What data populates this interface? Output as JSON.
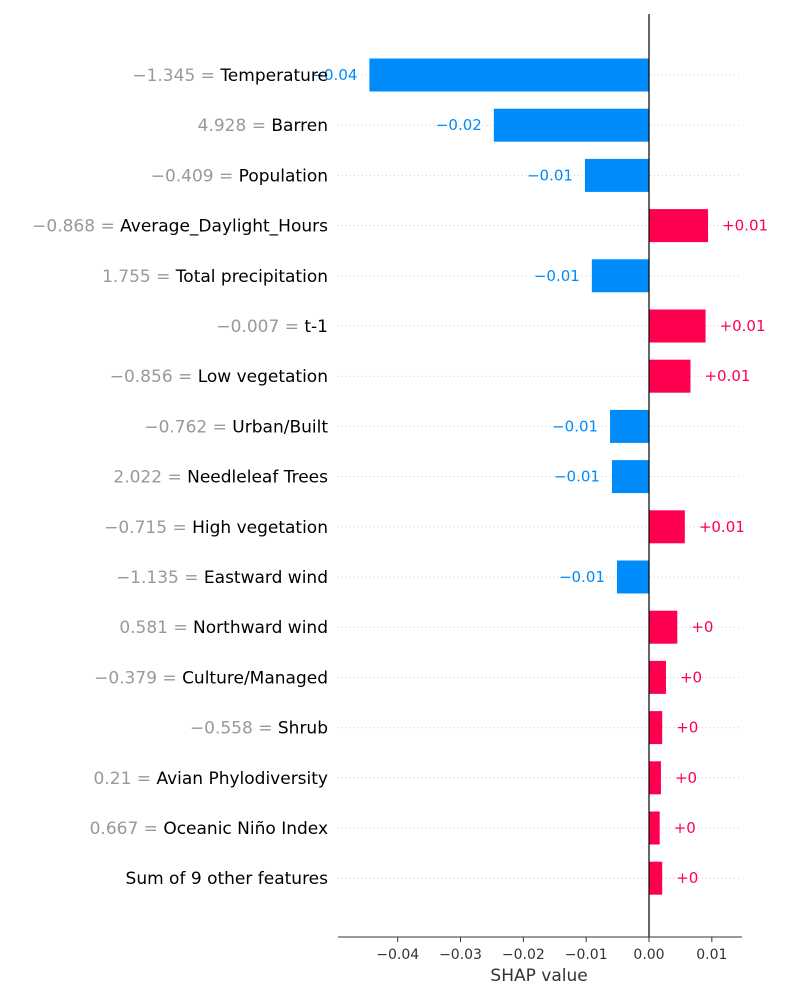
{
  "chart_data": {
    "type": "bar",
    "orientation": "horizontal",
    "xlabel": "SHAP value",
    "xlim": [
      -0.0495,
      0.0148
    ],
    "xticks": [
      -0.04,
      -0.03,
      -0.02,
      -0.01,
      0.0,
      0.01
    ],
    "xtick_labels": [
      "−0.04",
      "−0.03",
      "−0.02",
      "−0.01",
      "0.00",
      "0.01"
    ],
    "grid": "dotted row guides",
    "colors": {
      "positive": "#ff0051",
      "negative": "#008bfb",
      "feature_value": "#999999",
      "feature_name": "#000000"
    },
    "rows": [
      {
        "value_text": "−1.345 = ",
        "feature": "Temperature",
        "shap": -0.0445,
        "label": "−0.04"
      },
      {
        "value_text": "4.928 = ",
        "feature": "Barren",
        "shap": -0.0247,
        "label": "−0.02"
      },
      {
        "value_text": "−0.409 = ",
        "feature": "Population",
        "shap": -0.0102,
        "label": "−0.01"
      },
      {
        "value_text": "−0.868 = ",
        "feature": "Average_Daylight_Hours",
        "shap": 0.0094,
        "label": "+0.01"
      },
      {
        "value_text": "1.755 = ",
        "feature": "Total precipitation",
        "shap": -0.0091,
        "label": "−0.01"
      },
      {
        "value_text": "−0.007 = ",
        "feature": "t-1",
        "shap": 0.009,
        "label": "+0.01"
      },
      {
        "value_text": "−0.856 = ",
        "feature": "Low vegetation",
        "shap": 0.0066,
        "label": "+0.01"
      },
      {
        "value_text": "−0.762 = ",
        "feature": "Urban/Built",
        "shap": -0.0062,
        "label": "−0.01"
      },
      {
        "value_text": "2.022 = ",
        "feature": "Needleleaf Trees",
        "shap": -0.0059,
        "label": "−0.01"
      },
      {
        "value_text": "−0.715 = ",
        "feature": "High vegetation",
        "shap": 0.0057,
        "label": "+0.01"
      },
      {
        "value_text": "−1.135 = ",
        "feature": "Eastward wind",
        "shap": -0.0051,
        "label": "−0.01"
      },
      {
        "value_text": "0.581 = ",
        "feature": "Northward wind",
        "shap": 0.0045,
        "label": "+0"
      },
      {
        "value_text": "−0.379 = ",
        "feature": "Culture/Managed",
        "shap": 0.0027,
        "label": "+0"
      },
      {
        "value_text": "−0.558 = ",
        "feature": "Shrub",
        "shap": 0.0021,
        "label": "+0"
      },
      {
        "value_text": "0.21 = ",
        "feature": "Avian Phylodiversity",
        "shap": 0.0019,
        "label": "+0"
      },
      {
        "value_text": "0.667 = ",
        "feature": "Oceanic Niño Index",
        "shap": 0.0017,
        "label": "+0"
      },
      {
        "value_text": "",
        "feature": "Sum of 9 other features",
        "shap": 0.0021,
        "label": "+0"
      }
    ]
  }
}
